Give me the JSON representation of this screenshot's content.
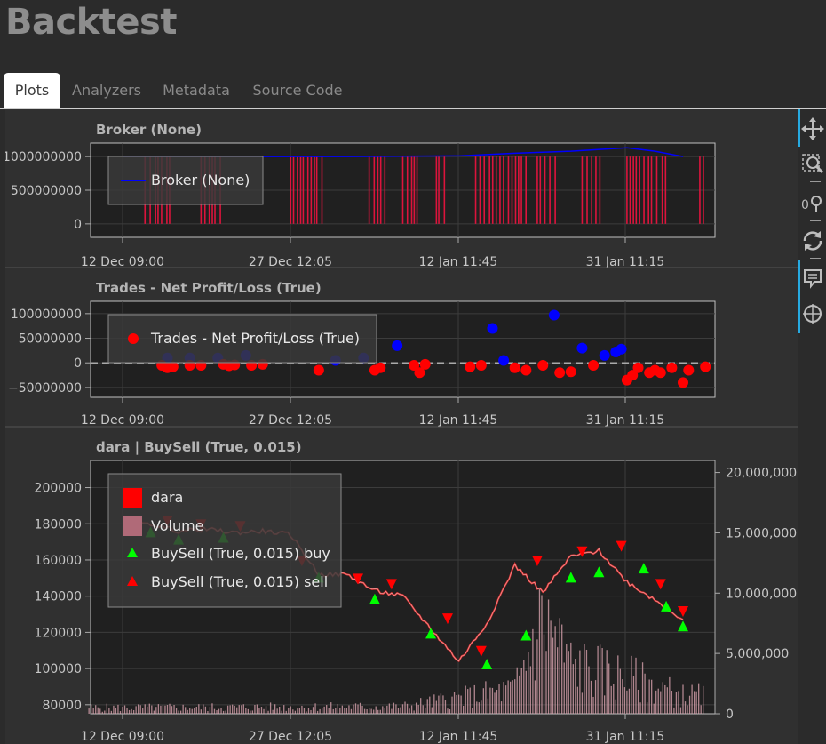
{
  "app": {
    "title": "Backtest"
  },
  "tabs": [
    {
      "label": "Plots",
      "active": true
    },
    {
      "label": "Analyzers",
      "active": false
    },
    {
      "label": "Metadata",
      "active": false
    },
    {
      "label": "Source Code",
      "active": false
    }
  ],
  "toolbar": {
    "tools": [
      "pan-icon",
      "box-zoom-icon",
      "wheel-zoom-icon",
      "reset-icon",
      "hover-icon",
      "crosshair-icon"
    ]
  },
  "colors": {
    "background": "#2b2b2b",
    "plot_bg": "#202020",
    "accent": "#26aae1",
    "broker_line": "#0000ff",
    "trade_loss": "#ff0000",
    "trade_profit": "#0000ff",
    "buy_marker": "#00ff00",
    "sell_marker": "#ff0000",
    "volume": "#d6a0ab"
  },
  "chart_data": [
    {
      "type": "line",
      "title": "Broker (None)",
      "legend": [
        "Broker (None)"
      ],
      "legend_position": "top-left",
      "x_ticks": [
        "12 Dec 09:00",
        "27 Dec 12:05",
        "12 Jan 11:45",
        "31 Jan 11:15"
      ],
      "y_ticks": [
        "1000000000",
        "500000000",
        "0"
      ],
      "ylim": [
        -200000000,
        1200000000
      ],
      "grid": true,
      "series": [
        {
          "name": "Broker (None)",
          "x": [
            0.0,
            0.2,
            0.4,
            0.6,
            0.7,
            0.8,
            0.9,
            0.95,
            1.0
          ],
          "values": [
            1000000000,
            1000000000,
            1000000000,
            1010000000,
            1050000000,
            1080000000,
            1130000000,
            1080000000,
            1000000000
          ]
        }
      ]
    },
    {
      "type": "scatter",
      "title": "Trades - Net Profit/Loss (True)",
      "legend": [
        "Trades - Net Profit/Loss (True)"
      ],
      "legend_position": "top-left",
      "x_ticks": [
        "12 Dec 09:00",
        "27 Dec 12:05",
        "12 Jan 11:45",
        "31 Jan 11:15"
      ],
      "y_ticks": [
        "100000000",
        "50000000",
        "0",
        "−50000000"
      ],
      "ylim": [
        -70000000,
        125000000
      ],
      "grid": true,
      "series": [
        {
          "name": "profit",
          "x": [
            0.08,
            0.12,
            0.17,
            0.22,
            0.38,
            0.43,
            0.49,
            0.66,
            0.68,
            0.77,
            0.82,
            0.86,
            0.88,
            0.89
          ],
          "values": [
            10000000,
            10000000,
            10000000,
            15000000,
            5000000,
            10000000,
            35000000,
            70000000,
            5000000,
            97000000,
            30000000,
            15000000,
            22000000,
            28000000
          ]
        },
        {
          "name": "loss",
          "x": [
            0.07,
            0.08,
            0.09,
            0.12,
            0.14,
            0.18,
            0.19,
            0.2,
            0.23,
            0.25,
            0.35,
            0.45,
            0.46,
            0.52,
            0.53,
            0.54,
            0.62,
            0.64,
            0.7,
            0.72,
            0.75,
            0.78,
            0.8,
            0.84,
            0.9,
            0.91,
            0.92,
            0.94,
            0.95,
            0.96,
            0.98,
            1.0,
            1.01,
            1.04
          ],
          "values": [
            -5000000,
            -10000000,
            -8000000,
            -5000000,
            -5000000,
            -3000000,
            -6000000,
            -4000000,
            -5000000,
            -3000000,
            -15000000,
            -15000000,
            -10000000,
            -5000000,
            -20000000,
            -3000000,
            -8000000,
            -5000000,
            -10000000,
            -15000000,
            -5000000,
            -20000000,
            -18000000,
            -5000000,
            -35000000,
            -25000000,
            -10000000,
            -20000000,
            -15000000,
            -20000000,
            -10000000,
            -40000000,
            -15000000,
            -8000000
          ]
        }
      ]
    },
    {
      "type": "line",
      "title": "dara | BuySell (True, 0.015)",
      "legend": [
        "dara",
        "Volume",
        "BuySell (True, 0.015) buy",
        "BuySell (True, 0.015) sell"
      ],
      "legend_position": "top-left",
      "x_ticks": [
        "12 Dec 09:00",
        "27 Dec 12:05",
        "12 Jan 11:45",
        "31 Jan 11:15"
      ],
      "y_ticks": [
        "200000",
        "180000",
        "160000",
        "140000",
        "120000",
        "100000",
        "80000"
      ],
      "y2_ticks": [
        "20,000,000",
        "15,000,000",
        "10,000,000",
        "5,000,000",
        "0"
      ],
      "ylim": [
        75000,
        215000
      ],
      "y2lim": [
        0,
        21000000
      ],
      "grid": true,
      "series": [
        {
          "name": "dara",
          "x": [
            0.0,
            0.05,
            0.1,
            0.15,
            0.2,
            0.25,
            0.3,
            0.35,
            0.4,
            0.45,
            0.5,
            0.55,
            0.6,
            0.65,
            0.7,
            0.75,
            0.8,
            0.85,
            0.9,
            0.95,
            1.0
          ],
          "values": [
            178000,
            180000,
            176000,
            177000,
            175000,
            176000,
            174000,
            152000,
            152000,
            143000,
            140000,
            122000,
            104000,
            125000,
            157000,
            142000,
            162000,
            165000,
            148000,
            138000,
            127000
          ]
        },
        {
          "name": "Volume",
          "x": [
            0.0,
            0.5,
            0.7,
            0.75,
            0.8,
            0.9,
            1.0
          ],
          "values": [
            500000,
            600000,
            2000000,
            8000000,
            4000000,
            3000000,
            1500000
          ]
        },
        {
          "name": "BuySell (True, 0.015) buy",
          "x": [
            0.05,
            0.1,
            0.18,
            0.35,
            0.45,
            0.55,
            0.65,
            0.72,
            0.8,
            0.85,
            0.93,
            0.97,
            1.0
          ],
          "values": [
            175000,
            171000,
            172000,
            150000,
            138000,
            119000,
            102000,
            118000,
            150000,
            153000,
            155000,
            134000,
            123000
          ]
        },
        {
          "name": "BuySell (True, 0.015) sell",
          "x": [
            0.08,
            0.14,
            0.21,
            0.32,
            0.42,
            0.48,
            0.58,
            0.64,
            0.74,
            0.82,
            0.89,
            0.96,
            1.0
          ],
          "values": [
            182000,
            180000,
            179000,
            160000,
            150000,
            147000,
            128000,
            110000,
            160000,
            165000,
            168000,
            147000,
            132000
          ]
        }
      ]
    }
  ]
}
